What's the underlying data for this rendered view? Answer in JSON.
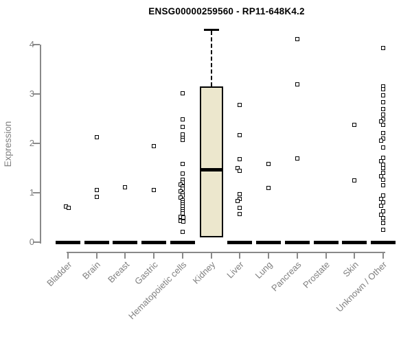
{
  "chart_data": {
    "type": "boxplot",
    "title": "ENSG00000259560 - RP11-648K4.2",
    "ylabel": "Expression",
    "xlabel": "",
    "yticks": [
      0,
      1,
      2,
      3,
      4
    ],
    "ylim": [
      0,
      4.4
    ],
    "grid": false,
    "legend": "none",
    "colors": {
      "box_fill": "#ece7cd",
      "box_border": "#000000",
      "median": "#000000",
      "point": "#000000",
      "axis": "#898989",
      "tick_label": "#808080",
      "title": "#000000",
      "background": "#ffffff"
    },
    "categories": [
      "Bladder",
      "Brain",
      "Breast",
      "Gastric",
      "Hematopoietic cells",
      "Kidney",
      "Liver",
      "Lung",
      "Pancreas",
      "Prostate",
      "Skin",
      "Unknown / Other"
    ],
    "series": [
      {
        "category": "Bladder",
        "zero_bar": true,
        "points": [
          [
            0.72,
            -3
          ],
          [
            0.7,
            1
          ]
        ]
      },
      {
        "category": "Brain",
        "zero_bar": true,
        "points": [
          [
            2.13
          ],
          [
            1.06
          ],
          [
            0.92
          ]
        ]
      },
      {
        "category": "Breast",
        "zero_bar": true,
        "points": [
          [
            1.11
          ]
        ]
      },
      {
        "category": "Gastric",
        "zero_bar": true,
        "points": [
          [
            1.94
          ],
          [
            1.06
          ]
        ]
      },
      {
        "category": "Hematopoietic cells",
        "zero_bar": true,
        "points": [
          [
            3.01
          ],
          [
            2.48
          ],
          [
            2.33
          ],
          [
            2.18
          ],
          [
            2.11
          ],
          [
            2.07
          ],
          [
            1.59
          ],
          [
            1.39
          ],
          [
            1.26
          ],
          [
            1.21
          ],
          [
            1.17,
            -3
          ],
          [
            1.12
          ],
          [
            1.08
          ],
          [
            1.03,
            -3
          ],
          [
            0.99
          ],
          [
            0.94
          ],
          [
            0.9,
            -3
          ],
          [
            0.85
          ],
          [
            0.81
          ],
          [
            0.76
          ],
          [
            0.72
          ],
          [
            0.67
          ],
          [
            0.63
          ],
          [
            0.58
          ],
          [
            0.51,
            -3
          ],
          [
            0.5,
            1
          ],
          [
            0.43,
            -3
          ],
          [
            0.42,
            1
          ],
          [
            0.21
          ]
        ]
      },
      {
        "category": "Kidney",
        "zero_bar": false,
        "box": {
          "q1": 0.1,
          "median": 1.47,
          "q3": 3.15,
          "whisker_high": 4.31
        },
        "points": []
      },
      {
        "category": "Liver",
        "zero_bar": true,
        "points": [
          [
            2.78
          ],
          [
            2.17
          ],
          [
            1.68
          ],
          [
            1.5,
            -3
          ],
          [
            1.45
          ],
          [
            0.97
          ],
          [
            0.87
          ],
          [
            0.84,
            -3
          ],
          [
            0.69
          ],
          [
            0.57
          ]
        ]
      },
      {
        "category": "Lung",
        "zero_bar": true,
        "points": [
          [
            1.58
          ],
          [
            1.1
          ]
        ]
      },
      {
        "category": "Pancreas",
        "zero_bar": true,
        "points": [
          [
            4.11
          ],
          [
            3.19
          ],
          [
            1.69
          ]
        ]
      },
      {
        "category": "Prostate",
        "zero_bar": true,
        "points": []
      },
      {
        "category": "Skin",
        "zero_bar": true,
        "points": [
          [
            2.38
          ],
          [
            1.25
          ]
        ]
      },
      {
        "category": "Unknown / Other",
        "zero_bar": true,
        "points": [
          [
            3.93
          ],
          [
            3.15
          ],
          [
            3.1
          ],
          [
            2.97
          ],
          [
            2.83
          ],
          [
            2.7
          ],
          [
            2.58
          ],
          [
            2.48
          ],
          [
            2.44,
            -3
          ],
          [
            2.37
          ],
          [
            2.21
          ],
          [
            2.1
          ],
          [
            2.06,
            -3
          ],
          [
            1.92
          ],
          [
            1.71
          ],
          [
            1.64,
            -3
          ],
          [
            1.57
          ],
          [
            1.5
          ],
          [
            1.4
          ],
          [
            1.33,
            -3
          ],
          [
            1.26
          ],
          [
            1.15
          ],
          [
            0.94
          ],
          [
            0.88,
            -3
          ],
          [
            0.81
          ],
          [
            0.74,
            -3
          ],
          [
            0.63
          ],
          [
            0.56,
            -3
          ],
          [
            0.49
          ],
          [
            0.39
          ],
          [
            0.25
          ]
        ]
      }
    ]
  }
}
